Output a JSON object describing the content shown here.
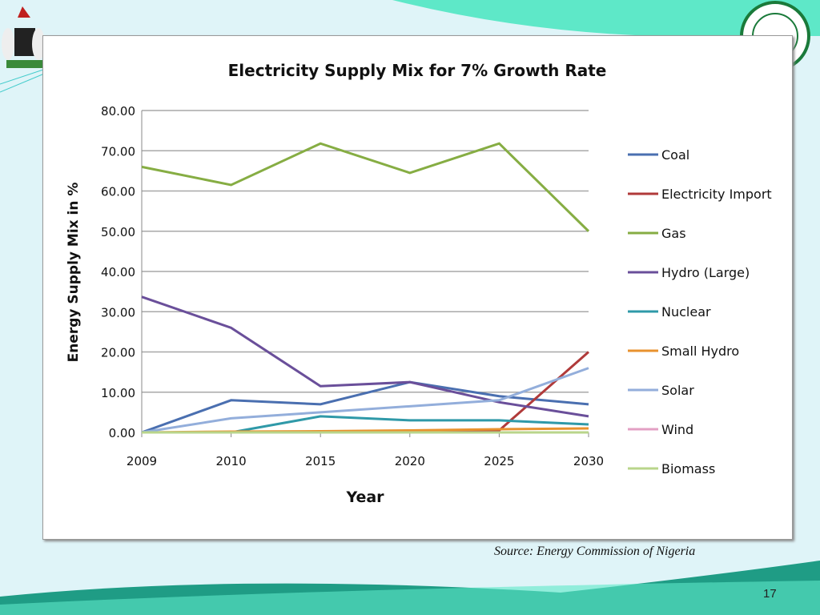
{
  "slide": {
    "source": "Source: Energy Commission of Nigeria",
    "page_number": "17",
    "logo_right_text": "ENERGY COMMISSION"
  },
  "chart_data": {
    "type": "line",
    "title": "Electricity Supply Mix for 7% Growth Rate",
    "xlabel": "Year",
    "ylabel": "Energy Supply Mix in %",
    "categories": [
      "2009",
      "2010",
      "2015",
      "2020",
      "2025",
      "2030"
    ],
    "ylim": [
      0,
      80
    ],
    "yticks": [
      "0.00",
      "10.00",
      "20.00",
      "30.00",
      "40.00",
      "50.00",
      "60.00",
      "70.00",
      "80.00"
    ],
    "grid": true,
    "legend": "right",
    "series": [
      {
        "name": "Coal",
        "color": "#4a6fb0",
        "values": [
          0,
          8,
          7,
          12.5,
          9,
          7
        ]
      },
      {
        "name": "Electricity Import",
        "color": "#b03a3a",
        "values": [
          0,
          0,
          0,
          0,
          0.5,
          20
        ]
      },
      {
        "name": "Gas",
        "color": "#86ad43",
        "values": [
          66,
          61.5,
          71.8,
          64.5,
          71.8,
          50
        ]
      },
      {
        "name": "Hydro (Large)",
        "color": "#6a4f9a",
        "values": [
          33.7,
          26,
          11.5,
          12.5,
          7.5,
          4
        ]
      },
      {
        "name": "Nuclear",
        "color": "#2f99a8",
        "values": [
          0,
          0,
          4,
          3,
          3,
          2
        ]
      },
      {
        "name": "Small Hydro",
        "color": "#e8922e",
        "values": [
          0,
          0.2,
          0.3,
          0.5,
          0.8,
          1
        ]
      },
      {
        "name": "Solar",
        "color": "#93aedb",
        "values": [
          0,
          3.5,
          5,
          6.5,
          8,
          16
        ]
      },
      {
        "name": "Wind",
        "color": "#e3a0c4",
        "values": [
          0,
          0,
          0,
          0,
          0,
          0
        ]
      },
      {
        "name": "Biomass",
        "color": "#b9d58b",
        "values": [
          0,
          0,
          0,
          0,
          0,
          0
        ]
      }
    ]
  }
}
